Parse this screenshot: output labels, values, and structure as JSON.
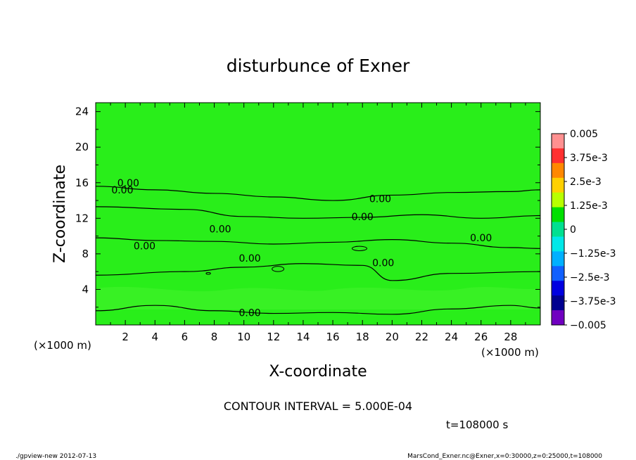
{
  "chart_data": {
    "type": "contour",
    "title": "disturbunce of Exner",
    "xlabel": "X-coordinate",
    "ylabel": "Z-coordinate",
    "x_unit": "(×1000 m)",
    "y_unit": "(×1000 m)",
    "xlim": [
      0,
      30
    ],
    "ylim": [
      0,
      25
    ],
    "x_ticks": [
      "2",
      "4",
      "6",
      "8",
      "10",
      "12",
      "14",
      "16",
      "18",
      "20",
      "22",
      "24",
      "26",
      "28"
    ],
    "y_ticks": [
      "4",
      "8",
      "12",
      "16",
      "20",
      "24"
    ],
    "contour_interval_text": "CONTOUR INTERVAL = 5.000E-04",
    "contour_labels": [
      "0.00",
      "0.00",
      "0.00",
      "0.00",
      "0.00",
      "0.00",
      "0.00",
      "0.00",
      "0.00"
    ],
    "contour_levels": [
      {
        "level": 0.0,
        "z_profile": [
          [
            0,
            15.6
          ],
          [
            4,
            15.2
          ],
          [
            8,
            14.8
          ],
          [
            12,
            14.4
          ],
          [
            16,
            14.0
          ],
          [
            20,
            14.6
          ],
          [
            24,
            14.9
          ],
          [
            28,
            15.0
          ],
          [
            30,
            15.2
          ]
        ]
      },
      {
        "level": 0.0,
        "z_profile": [
          [
            0,
            13.3
          ],
          [
            6,
            13.0
          ],
          [
            10,
            12.2
          ],
          [
            14,
            12.0
          ],
          [
            18,
            12.1
          ],
          [
            22,
            12.4
          ],
          [
            26,
            12.0
          ],
          [
            30,
            12.3
          ]
        ]
      },
      {
        "level": 0.0,
        "z_profile": [
          [
            0,
            9.8
          ],
          [
            4,
            9.5
          ],
          [
            8,
            9.4
          ],
          [
            12,
            9.1
          ],
          [
            16,
            9.3
          ],
          [
            20,
            9.6
          ],
          [
            24,
            9.2
          ],
          [
            28,
            8.7
          ],
          [
            30,
            8.6
          ]
        ]
      },
      {
        "level": 0.0,
        "z_profile": [
          [
            0,
            5.6
          ],
          [
            6,
            6.0
          ],
          [
            10,
            6.5
          ],
          [
            14,
            6.9
          ],
          [
            18,
            6.7
          ],
          [
            20,
            5.0
          ],
          [
            24,
            5.8
          ],
          [
            30,
            6.0
          ]
        ]
      },
      {
        "level": 0.0,
        "z_profile": [
          [
            0,
            1.6
          ],
          [
            4,
            2.2
          ],
          [
            8,
            1.6
          ],
          [
            12,
            1.3
          ],
          [
            16,
            1.4
          ],
          [
            20,
            1.2
          ],
          [
            24,
            1.8
          ],
          [
            28,
            2.2
          ],
          [
            30,
            1.9
          ]
        ]
      }
    ],
    "colorbar": {
      "labels": [
        "0.005",
        "3.75e-3",
        "2.5e-3",
        "1.25e-3",
        "0",
        "−1.25e-3",
        "−2.5e-3",
        "−3.75e-3",
        "−0.005"
      ],
      "colors": [
        "#ff9090",
        "#ff3030",
        "#ff8800",
        "#ffd000",
        "#b8ff00",
        "#00e000",
        "#00e090",
        "#00e8e8",
        "#00b0ff",
        "#1060ff",
        "#0000e0",
        "#000090",
        "#7000c0"
      ]
    },
    "fill_color": "#29ee1a",
    "grid": false
  },
  "time_label": "t=108000 s",
  "footer_left": "./gpview-new   2012-07-13",
  "footer_right": "MarsCond_Exner.nc@Exner,x=0:30000,z=0:25000,t=108000"
}
